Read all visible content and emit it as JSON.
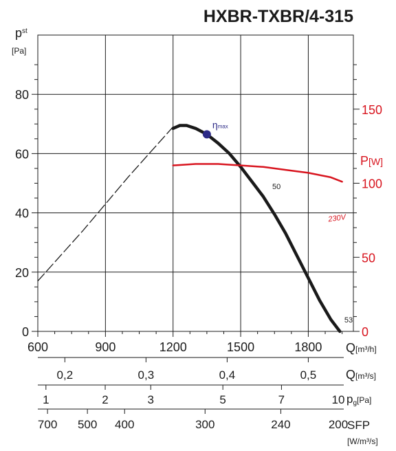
{
  "chart_data": {
    "type": "line",
    "title": "HXBR-TXBR/4-315",
    "left_axis": {
      "label": "p",
      "label_sub": "st",
      "unit": "[Pa]",
      "range": [
        0,
        100
      ],
      "ticks": [
        0,
        20,
        40,
        60,
        80
      ]
    },
    "right_axis": {
      "label": "P",
      "unit": "[W]",
      "range": [
        0,
        200
      ],
      "ticks": [
        0,
        50,
        100,
        150
      ],
      "color": "#d8141e"
    },
    "x_axis": {
      "label": "Q",
      "unit": "[m³/h]",
      "range": [
        600,
        2000
      ],
      "ticks": [
        600,
        900,
        1200,
        1500,
        1800
      ]
    },
    "secondary_scales": [
      {
        "name": "Q [m³/s]",
        "label": "Q",
        "unit": "[m³/s]",
        "ticks": [
          {
            "q": 720,
            "text": "0,2"
          },
          {
            "q": 1080,
            "text": "0,3"
          },
          {
            "q": 1440,
            "text": "0,4"
          },
          {
            "q": 1800,
            "text": "0,5"
          }
        ]
      },
      {
        "name": "pg [Pa]",
        "label": "p",
        "label_sub": "g",
        "unit": "[Pa]",
        "ticks": [
          {
            "q": 636,
            "text": "1"
          },
          {
            "q": 899,
            "text": "2"
          },
          {
            "q": 1101,
            "text": "3"
          },
          {
            "q": 1421,
            "text": "5"
          },
          {
            "q": 1681,
            "text": "7"
          },
          {
            "q": 2009,
            "text": "10"
          }
        ]
      },
      {
        "name": "SFP [W/m³/s]",
        "label": "SFP",
        "unit": "[W/m³/s]",
        "ticks": [
          {
            "q": 643,
            "text": "700"
          },
          {
            "q": 820,
            "text": "500"
          },
          {
            "q": 985,
            "text": "400"
          },
          {
            "q": 1342,
            "text": "300"
          },
          {
            "q": 1678,
            "text": "240"
          },
          {
            "q": 2013,
            "text": "200"
          }
        ]
      }
    ],
    "series": [
      {
        "kind": "pressure-dashed",
        "axis": "left",
        "color": "#1a1a1a",
        "x": [
          600,
          700,
          800,
          900,
          1000,
          1100,
          1200
        ],
        "y": [
          17,
          25.5,
          34,
          43,
          52,
          60.5,
          69
        ]
      },
      {
        "kind": "pressure",
        "axis": "left",
        "color": "#1a1a1a",
        "x": [
          1200,
          1230,
          1260,
          1300,
          1350,
          1400,
          1450,
          1500,
          1550,
          1600,
          1650,
          1700,
          1750,
          1800,
          1850,
          1900,
          1940
        ],
        "y": [
          68.5,
          69.5,
          69.5,
          68.5,
          66.5,
          63.5,
          60,
          55.5,
          50.5,
          45.5,
          39.5,
          33,
          25.5,
          18,
          10.5,
          4,
          0
        ]
      },
      {
        "name": "230V",
        "kind": "power",
        "axis": "right",
        "color": "#d8141e",
        "x": [
          1200,
          1300,
          1400,
          1500,
          1600,
          1700,
          1800,
          1900,
          1950
        ],
        "y": [
          112,
          113,
          113,
          112,
          111,
          109,
          107,
          104,
          101
        ]
      }
    ],
    "points": [
      {
        "label": "η",
        "label_sub": "max",
        "x": 1350,
        "y": 66.5,
        "color": "#2c2a86"
      }
    ],
    "annotations": [
      {
        "text": "50",
        "x": 1640,
        "y": 48,
        "color": "#1a1a1a"
      },
      {
        "text": "53",
        "x": 1960,
        "y": 3,
        "color": "#1a1a1a"
      },
      {
        "text": "230V",
        "x": 1890,
        "y": 37,
        "color": "#d8141e"
      }
    ],
    "grid": true
  }
}
